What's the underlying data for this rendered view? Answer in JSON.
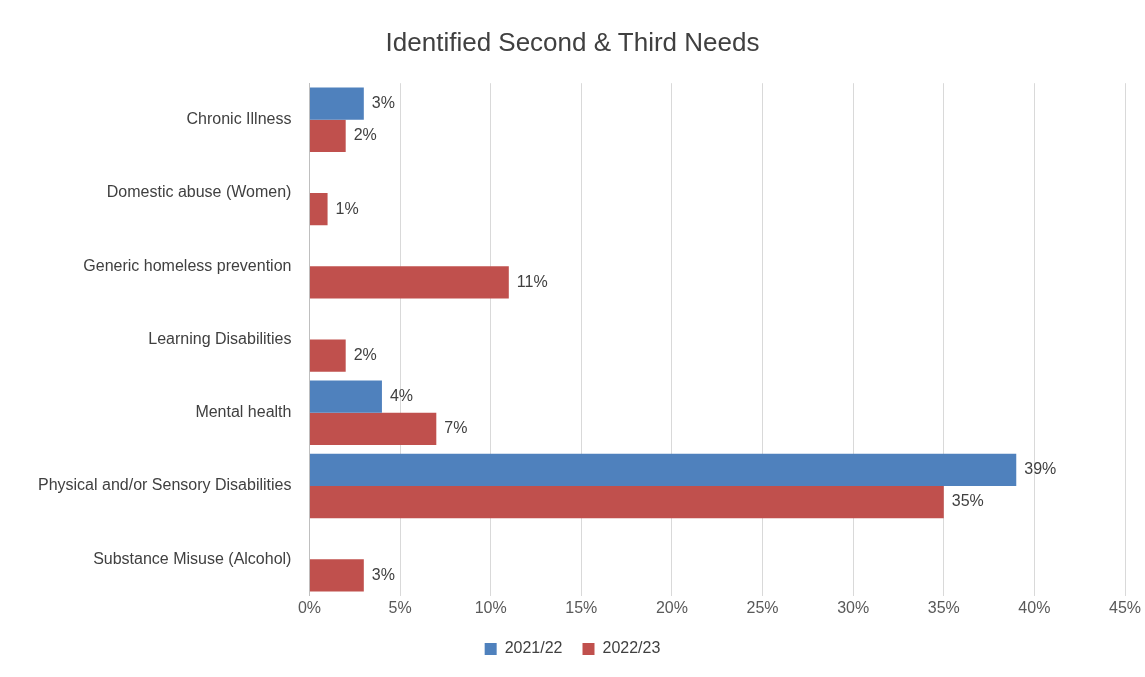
{
  "chart_data": {
    "type": "bar",
    "orientation": "horizontal",
    "title": "Identified Second & Third Needs",
    "categories": [
      "Chronic Illness",
      "Domestic abuse (Women)",
      "Generic homeless prevention",
      "Learning Disabilities",
      "Mental health",
      "Physical and/or Sensory Disabilities",
      "Substance Misuse (Alcohol)"
    ],
    "series": [
      {
        "name": "2021/22",
        "color": "#4f81bd",
        "values": [
          3,
          null,
          null,
          null,
          4,
          39,
          null
        ],
        "value_labels": [
          "3%",
          null,
          null,
          null,
          "4%",
          "39%",
          null
        ]
      },
      {
        "name": "2022/23",
        "color": "#c0504d",
        "values": [
          2,
          1,
          11,
          2,
          7,
          35,
          3
        ],
        "value_labels": [
          "2%",
          "1%",
          "11%",
          "2%",
          "7%",
          "35%",
          "3%"
        ]
      }
    ],
    "xlim": [
      0,
      45
    ],
    "xticks": [
      {
        "value": 0,
        "label": "0%"
      },
      {
        "value": 5,
        "label": "5%"
      },
      {
        "value": 10,
        "label": "10%"
      },
      {
        "value": 15,
        "label": "15%"
      },
      {
        "value": 20,
        "label": "20%"
      },
      {
        "value": 25,
        "label": "25%"
      },
      {
        "value": 30,
        "label": "30%"
      },
      {
        "value": 35,
        "label": "35%"
      },
      {
        "value": 40,
        "label": "40%"
      },
      {
        "value": 45,
        "label": "45%"
      }
    ],
    "grid": "x",
    "legend": "bottom"
  }
}
